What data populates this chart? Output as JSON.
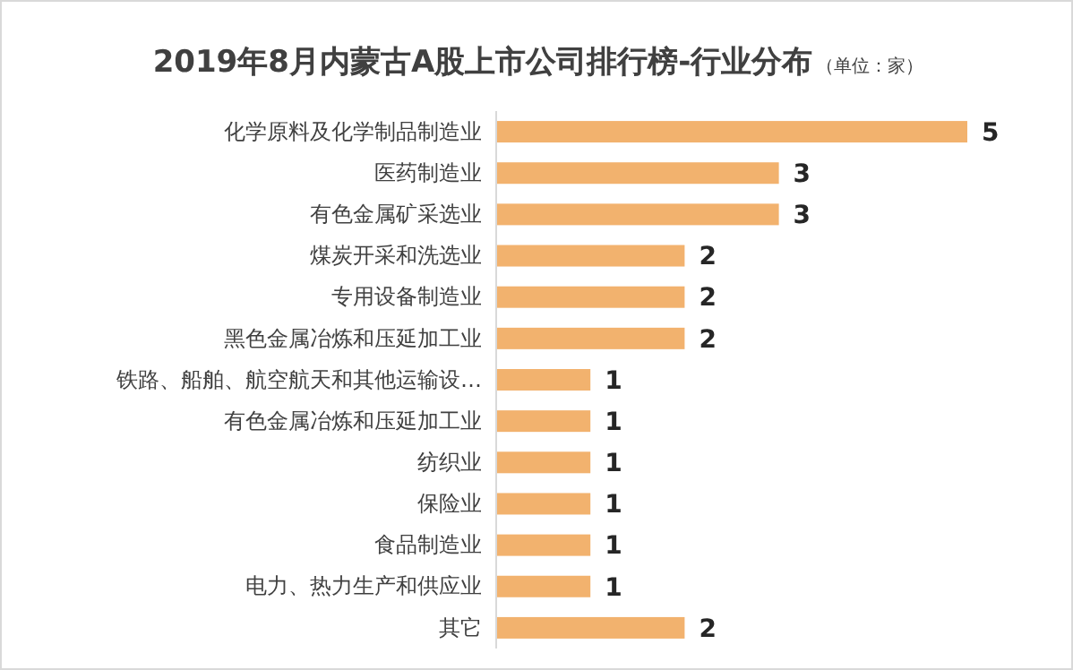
{
  "chart_data": {
    "type": "bar",
    "orientation": "horizontal",
    "title": "2019年8月内蒙古A股上市公司排行榜-行业分布",
    "subtitle": "（单位：家）",
    "categories": [
      "化学原料及化学制品制造业",
      "医药制造业",
      "有色金属矿采选业",
      "煤炭开采和洗选业",
      "专用设备制造业",
      "黑色金属冶炼和压延加工业",
      "铁路、船舶、航空航天和其他运输设…",
      "有色金属冶炼和压延加工业",
      "纺织业",
      "保险业",
      "食品制造业",
      "电力、热力生产和供应业",
      "其它"
    ],
    "values": [
      5,
      3,
      3,
      2,
      2,
      2,
      1,
      1,
      1,
      1,
      1,
      1,
      2
    ],
    "color": "#f2b26e",
    "data_labels": true
  }
}
